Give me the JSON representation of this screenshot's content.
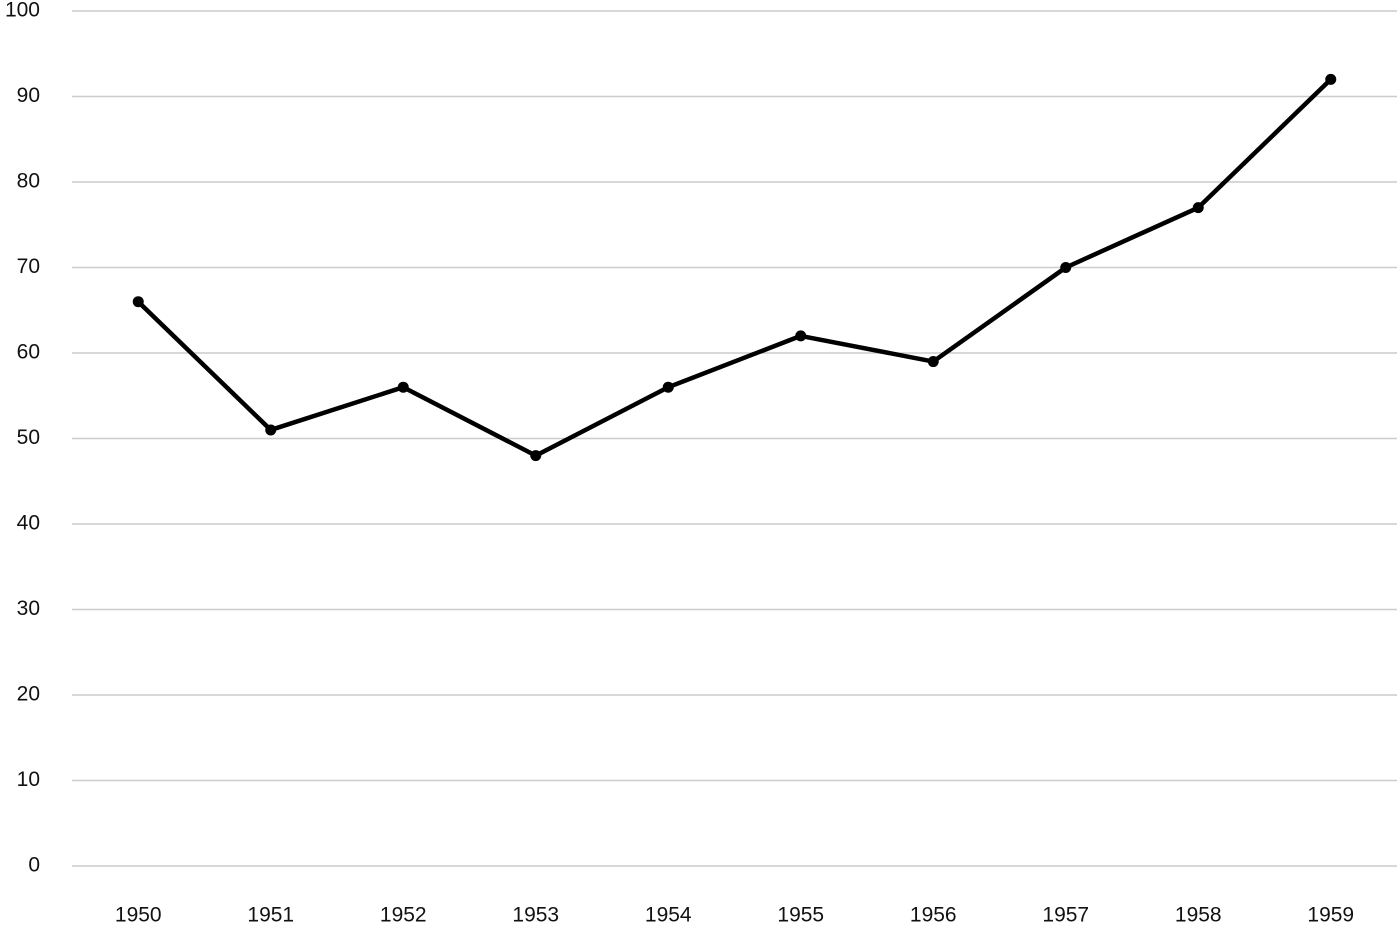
{
  "chart_data": {
    "type": "line",
    "categories": [
      "1950",
      "1951",
      "1952",
      "1953",
      "1954",
      "1955",
      "1956",
      "1957",
      "1958",
      "1959"
    ],
    "values": [
      66,
      51,
      56,
      48,
      56,
      62,
      59,
      70,
      77,
      92
    ],
    "color": "#000000",
    "ylim": [
      0,
      100
    ],
    "yticks": [
      0,
      10,
      20,
      30,
      40,
      50,
      60,
      70,
      80,
      90,
      100
    ],
    "grid": true
  }
}
